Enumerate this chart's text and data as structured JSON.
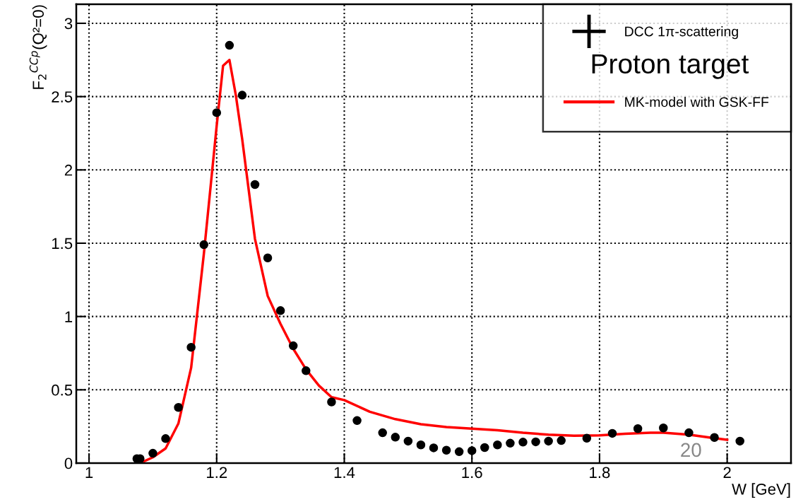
{
  "chart_data": {
    "type": "scatter",
    "ylabel": "F$_{2}$$^{CCp}$(Q²=0)",
    "xlabel": "W [GeV]",
    "xlim": [
      0.98,
      2.1
    ],
    "xticks": [
      1,
      1.2,
      1.4,
      1.6,
      1.8,
      2
    ],
    "ylim": [
      0,
      3.13
    ],
    "yticks": [
      0,
      0.5,
      1,
      1.5,
      2,
      2.5,
      3
    ],
    "grid": true,
    "legend": "top right",
    "series": [
      {
        "name": "DCC 1π-scattering",
        "marker": "circle",
        "color": "#000000",
        "x": [
          1.075,
          1.08,
          1.1,
          1.12,
          1.14,
          1.16,
          1.18,
          1.2,
          1.22,
          1.24,
          1.26,
          1.28,
          1.3,
          1.32,
          1.34,
          1.38,
          1.42,
          1.46,
          1.48,
          1.5,
          1.52,
          1.54,
          1.56,
          1.58,
          1.6,
          1.62,
          1.64,
          1.66,
          1.68,
          1.7,
          1.72,
          1.74,
          1.78,
          1.82,
          1.86,
          1.9,
          1.94,
          1.98,
          2.02
        ],
        "values": [
          0.03,
          0.03,
          0.067,
          0.167,
          0.38,
          0.79,
          1.49,
          2.39,
          2.85,
          2.51,
          1.9,
          1.4,
          1.04,
          0.8,
          0.63,
          0.417,
          0.29,
          0.207,
          0.177,
          0.15,
          0.124,
          0.104,
          0.088,
          0.078,
          0.085,
          0.106,
          0.124,
          0.136,
          0.143,
          0.145,
          0.15,
          0.154,
          0.17,
          0.203,
          0.235,
          0.24,
          0.207,
          0.175,
          0.15
        ]
      },
      {
        "name": "MK-model with GSK-FF",
        "type": "line",
        "color": "#ff0000",
        "x": [
          1.08,
          1.1,
          1.12,
          1.14,
          1.16,
          1.18,
          1.2,
          1.21,
          1.22,
          1.23,
          1.24,
          1.26,
          1.28,
          1.3,
          1.32,
          1.34,
          1.36,
          1.38,
          1.4,
          1.44,
          1.48,
          1.52,
          1.56,
          1.6,
          1.64,
          1.68,
          1.72,
          1.76,
          1.8,
          1.84,
          1.88,
          1.9,
          1.94,
          1.98,
          2.0
        ],
        "values": [
          0.0,
          0.04,
          0.1,
          0.27,
          0.65,
          1.43,
          2.3,
          2.71,
          2.75,
          2.51,
          2.21,
          1.53,
          1.14,
          0.95,
          0.78,
          0.64,
          0.53,
          0.45,
          0.43,
          0.35,
          0.3,
          0.265,
          0.246,
          0.235,
          0.224,
          0.207,
          0.194,
          0.187,
          0.189,
          0.2,
          0.207,
          0.207,
          0.194,
          0.17,
          0.159
        ]
      }
    ],
    "annotations": [
      "Proton target",
      "20"
    ]
  }
}
